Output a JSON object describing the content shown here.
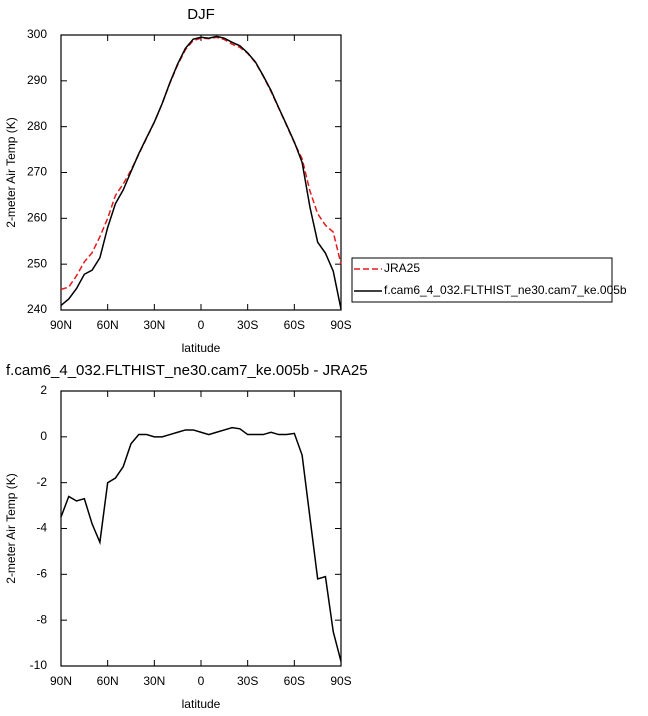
{
  "chart_data": [
    {
      "type": "line",
      "title": "DJF",
      "xlabel": "latitude",
      "ylabel": "2-meter Air Temp (K)",
      "x": [
        90,
        85,
        80,
        75,
        70,
        65,
        60,
        55,
        50,
        45,
        40,
        35,
        30,
        25,
        20,
        15,
        10,
        5,
        0,
        -5,
        -10,
        -15,
        -20,
        -25,
        -30,
        -35,
        -40,
        -45,
        -50,
        -55,
        -60,
        -65,
        -70,
        -75,
        -80,
        -85,
        -90
      ],
      "series": [
        {
          "name": "JRA25",
          "color": "#e41a1c",
          "style": "dashed",
          "values": [
            244.5,
            245,
            247.5,
            250.5,
            252.5,
            256,
            260,
            265,
            267.5,
            270.5,
            274,
            277.5,
            281,
            285,
            289.5,
            293.5,
            296.8,
            298.8,
            299.3,
            299.2,
            299.5,
            299,
            298,
            297.3,
            296,
            294,
            291,
            287.7,
            284,
            280.3,
            276.5,
            273,
            266,
            261,
            258.5,
            257,
            250
          ]
        },
        {
          "name": "f.cam6_4_032.FLTHIST_ne30.cam7_ke.005b",
          "color": "#000000",
          "style": "solid",
          "values": [
            241,
            242.4,
            244.7,
            247.8,
            248.7,
            251.4,
            258,
            263.2,
            266.2,
            270.2,
            274.1,
            277.6,
            281,
            285,
            289.6,
            293.7,
            297.1,
            299.1,
            299.5,
            299.3,
            299.7,
            299.3,
            298.4,
            297.65,
            296.1,
            294.1,
            291.1,
            287.9,
            284.1,
            280.4,
            276.65,
            272.2,
            262.5,
            254.8,
            252.4,
            248.5,
            240.2
          ]
        }
      ],
      "xlim": [
        90,
        -90
      ],
      "xticks": [
        {
          "value": 90,
          "label": "90N"
        },
        {
          "value": 60,
          "label": "60N"
        },
        {
          "value": 30,
          "label": "30N"
        },
        0,
        {
          "value": -30,
          "label": "30S"
        },
        {
          "value": -60,
          "label": "60S"
        },
        {
          "value": -90,
          "label": "90S"
        }
      ],
      "ylim": [
        240,
        300
      ],
      "yticks": [
        240,
        250,
        260,
        270,
        280,
        290,
        300
      ],
      "legend": "right"
    },
    {
      "type": "line",
      "title": "f.cam6_4_032.FLTHIST_ne30.cam7_ke.005b - JRA25",
      "xlabel": "latitude",
      "ylabel": "2-meter Air Temp (K)",
      "x": [
        90,
        85,
        80,
        75,
        70,
        65,
        60,
        55,
        50,
        45,
        40,
        35,
        30,
        25,
        20,
        15,
        10,
        5,
        0,
        -5,
        -10,
        -15,
        -20,
        -25,
        -30,
        -35,
        -40,
        -45,
        -50,
        -55,
        -60,
        -65,
        -70,
        -75,
        -80,
        -85,
        -90
      ],
      "color": "#000000",
      "values": [
        -3.5,
        -2.6,
        -2.8,
        -2.7,
        -3.8,
        -4.6,
        -2.0,
        -1.8,
        -1.3,
        -0.3,
        0.1,
        0.1,
        0.0,
        0.0,
        0.1,
        0.2,
        0.3,
        0.3,
        0.2,
        0.1,
        0.2,
        0.3,
        0.4,
        0.35,
        0.1,
        0.1,
        0.1,
        0.2,
        0.1,
        0.1,
        0.15,
        -0.8,
        -3.5,
        -6.2,
        -6.1,
        -8.5,
        -9.8
      ],
      "xlim": [
        90,
        -90
      ],
      "xticks": [
        {
          "value": 90,
          "label": "90N"
        },
        {
          "value": 60,
          "label": "60N"
        },
        {
          "value": 30,
          "label": "30N"
        },
        0,
        {
          "value": -30,
          "label": "30S"
        },
        {
          "value": -60,
          "label": "60S"
        },
        {
          "value": -90,
          "label": "90S"
        }
      ],
      "ylim": [
        -10,
        2
      ],
      "yticks": [
        -10,
        -8,
        -6,
        -4,
        -2,
        0,
        2
      ]
    }
  ]
}
